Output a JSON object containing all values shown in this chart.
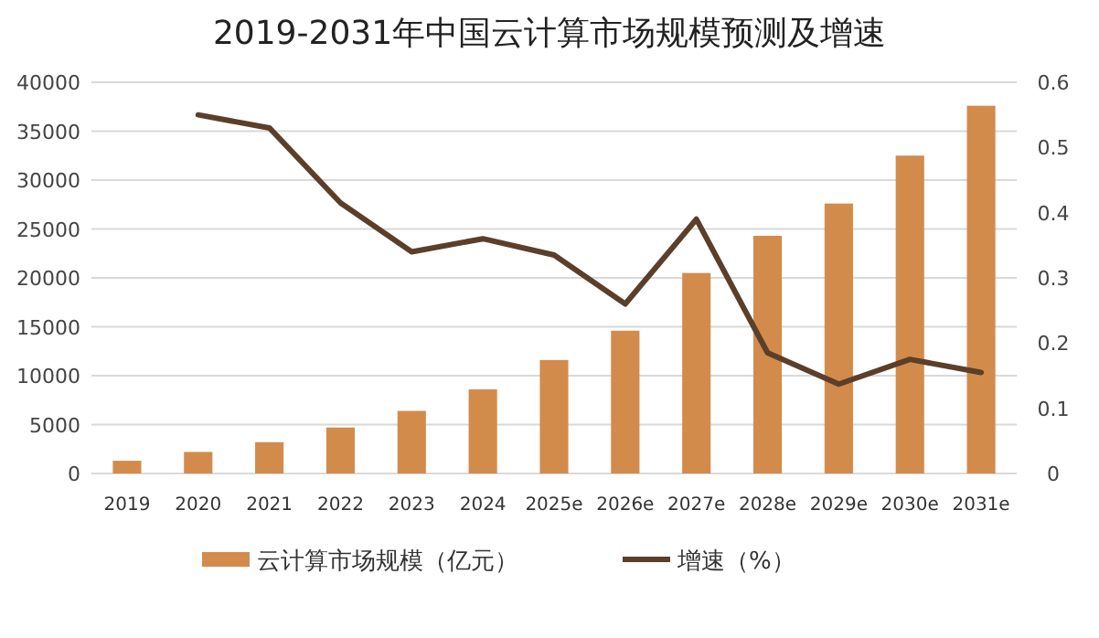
{
  "chart_data": {
    "type": "bar",
    "title": "2019-2031年中国云计算市场规模预测及增速",
    "categories": [
      "2019",
      "2020",
      "2021",
      "2022",
      "2023",
      "2024",
      "2025e",
      "2026e",
      "2027e",
      "2028e",
      "2029e",
      "2030e",
      "2031e"
    ],
    "series": [
      {
        "name": "云计算市场规模（亿元）",
        "color": "#d38b4c",
        "values": [
          1300,
          2200,
          3200,
          4700,
          6400,
          8600,
          11600,
          14600,
          20500,
          24300,
          27600,
          32500,
          37600
        ]
      },
      {
        "name": "增速（%）",
        "type": "line",
        "axis": "y2",
        "color": "#5b3f2a",
        "values": [
          null,
          0.55,
          0.53,
          0.415,
          0.34,
          0.36,
          0.335,
          0.26,
          0.39,
          0.185,
          0.137,
          0.175,
          0.155
        ]
      }
    ],
    "ylim": [
      0,
      40000
    ],
    "yticks": [
      0,
      5000,
      10000,
      15000,
      20000,
      25000,
      30000,
      35000,
      40000
    ],
    "y2lim": [
      0,
      0.6
    ],
    "y2ticks": [
      0,
      0.1,
      0.2,
      0.3,
      0.4,
      0.5,
      0.6
    ],
    "grid": "y",
    "legend": "bottom",
    "marker": "none",
    "line_style": "solid"
  }
}
